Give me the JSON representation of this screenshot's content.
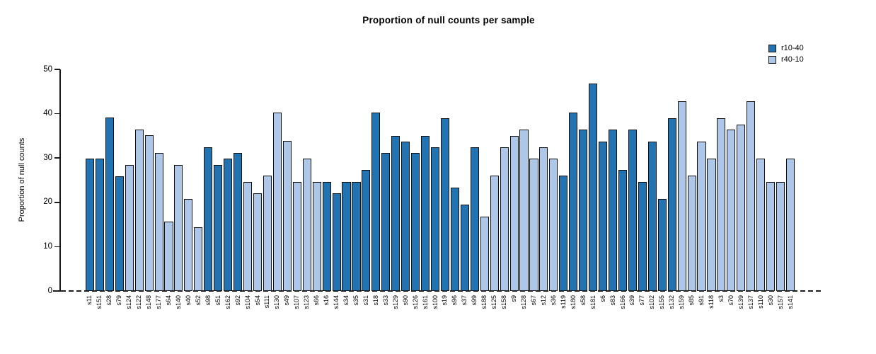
{
  "title": "Proportion of null counts per sample",
  "legend": {
    "position": "top-right",
    "items": [
      {
        "label": "r10-40",
        "color": "#2173B2"
      },
      {
        "label": "r40-10",
        "color": "#AEC7E8"
      }
    ]
  },
  "chart_data": {
    "type": "bar",
    "title": "Proportion of null counts per sample",
    "xlabel": "",
    "ylabel": "Proportion of null counts",
    "ylim": [
      0,
      50
    ],
    "yticks": [
      0,
      10,
      20,
      30,
      40,
      50
    ],
    "grid": false,
    "zero_line_style": "dashed",
    "x_axis_label_rotation": 90,
    "bar_border_color": "#111111",
    "series_names": [
      "r10-40",
      "r40-10"
    ],
    "bars": [
      {
        "label": "s11",
        "value": 29.8,
        "series": "r10-40"
      },
      {
        "label": "s151",
        "value": 29.8,
        "series": "r10-40"
      },
      {
        "label": "s28",
        "value": 39.1,
        "series": "r10-40"
      },
      {
        "label": "s79",
        "value": 25.9,
        "series": "r10-40"
      },
      {
        "label": "s124",
        "value": 28.5,
        "series": "r40-10"
      },
      {
        "label": "s122",
        "value": 36.4,
        "series": "r40-10"
      },
      {
        "label": "s148",
        "value": 35.1,
        "series": "r40-10"
      },
      {
        "label": "s177",
        "value": 31.2,
        "series": "r40-10"
      },
      {
        "label": "s64",
        "value": 15.6,
        "series": "r40-10"
      },
      {
        "label": "s140",
        "value": 28.5,
        "series": "r40-10"
      },
      {
        "label": "s40",
        "value": 20.8,
        "series": "r40-10"
      },
      {
        "label": "s52",
        "value": 14.3,
        "series": "r40-10"
      },
      {
        "label": "s98",
        "value": 32.4,
        "series": "r10-40"
      },
      {
        "label": "s51",
        "value": 28.5,
        "series": "r10-40"
      },
      {
        "label": "s162",
        "value": 29.8,
        "series": "r10-40"
      },
      {
        "label": "s92",
        "value": 31.2,
        "series": "r10-40"
      },
      {
        "label": "s104",
        "value": 24.6,
        "series": "r40-10"
      },
      {
        "label": "s54",
        "value": 22.0,
        "series": "r40-10"
      },
      {
        "label": "s111",
        "value": 26.0,
        "series": "r40-10"
      },
      {
        "label": "s130",
        "value": 40.2,
        "series": "r40-10"
      },
      {
        "label": "s49",
        "value": 33.8,
        "series": "r40-10"
      },
      {
        "label": "s107",
        "value": 24.6,
        "series": "r40-10"
      },
      {
        "label": "s123",
        "value": 29.8,
        "series": "r40-10"
      },
      {
        "label": "s66",
        "value": 24.6,
        "series": "r40-10"
      },
      {
        "label": "s16",
        "value": 24.6,
        "series": "r10-40"
      },
      {
        "label": "s144",
        "value": 22.0,
        "series": "r10-40"
      },
      {
        "label": "s34",
        "value": 24.6,
        "series": "r10-40"
      },
      {
        "label": "s35",
        "value": 24.6,
        "series": "r10-40"
      },
      {
        "label": "s31",
        "value": 27.3,
        "series": "r10-40"
      },
      {
        "label": "s18",
        "value": 40.2,
        "series": "r10-40"
      },
      {
        "label": "s33",
        "value": 31.2,
        "series": "r10-40"
      },
      {
        "label": "s129",
        "value": 35.0,
        "series": "r10-40"
      },
      {
        "label": "s90",
        "value": 33.7,
        "series": "r10-40"
      },
      {
        "label": "s126",
        "value": 31.2,
        "series": "r10-40"
      },
      {
        "label": "s161",
        "value": 35.0,
        "series": "r10-40"
      },
      {
        "label": "s100",
        "value": 32.4,
        "series": "r10-40"
      },
      {
        "label": "s19",
        "value": 39.0,
        "series": "r10-40"
      },
      {
        "label": "s96",
        "value": 23.3,
        "series": "r10-40"
      },
      {
        "label": "s37",
        "value": 19.5,
        "series": "r10-40"
      },
      {
        "label": "s99",
        "value": 32.4,
        "series": "r10-40"
      },
      {
        "label": "s188",
        "value": 16.8,
        "series": "r40-10"
      },
      {
        "label": "s125",
        "value": 26.0,
        "series": "r40-10"
      },
      {
        "label": "s158",
        "value": 32.4,
        "series": "r40-10"
      },
      {
        "label": "s9",
        "value": 35.0,
        "series": "r40-10"
      },
      {
        "label": "s128",
        "value": 36.4,
        "series": "r40-10"
      },
      {
        "label": "s67",
        "value": 29.8,
        "series": "r40-10"
      },
      {
        "label": "s12",
        "value": 32.4,
        "series": "r40-10"
      },
      {
        "label": "s36",
        "value": 29.8,
        "series": "r40-10"
      },
      {
        "label": "s119",
        "value": 26.0,
        "series": "r10-40"
      },
      {
        "label": "s180",
        "value": 40.2,
        "series": "r10-40"
      },
      {
        "label": "s58",
        "value": 36.4,
        "series": "r10-40"
      },
      {
        "label": "s181",
        "value": 46.8,
        "series": "r10-40"
      },
      {
        "label": "s6",
        "value": 33.7,
        "series": "r10-40"
      },
      {
        "label": "s83",
        "value": 36.4,
        "series": "r10-40"
      },
      {
        "label": "s166",
        "value": 27.3,
        "series": "r10-40"
      },
      {
        "label": "s39",
        "value": 36.4,
        "series": "r10-40"
      },
      {
        "label": "s77",
        "value": 24.6,
        "series": "r10-40"
      },
      {
        "label": "s102",
        "value": 33.7,
        "series": "r10-40"
      },
      {
        "label": "s155",
        "value": 20.8,
        "series": "r10-40"
      },
      {
        "label": "s132",
        "value": 39.0,
        "series": "r10-40"
      },
      {
        "label": "s159",
        "value": 42.8,
        "series": "r40-10"
      },
      {
        "label": "s85",
        "value": 26.0,
        "series": "r40-10"
      },
      {
        "label": "s91",
        "value": 33.7,
        "series": "r40-10"
      },
      {
        "label": "s118",
        "value": 29.8,
        "series": "r40-10"
      },
      {
        "label": "s3",
        "value": 39.0,
        "series": "r40-10"
      },
      {
        "label": "s70",
        "value": 36.4,
        "series": "r40-10"
      },
      {
        "label": "s139",
        "value": 37.6,
        "series": "r40-10"
      },
      {
        "label": "s137",
        "value": 42.8,
        "series": "r40-10"
      },
      {
        "label": "s110",
        "value": 29.8,
        "series": "r40-10"
      },
      {
        "label": "s30",
        "value": 24.6,
        "series": "r40-10"
      },
      {
        "label": "s157",
        "value": 24.6,
        "series": "r40-10"
      },
      {
        "label": "s141",
        "value": 29.8,
        "series": "r40-10"
      }
    ]
  }
}
